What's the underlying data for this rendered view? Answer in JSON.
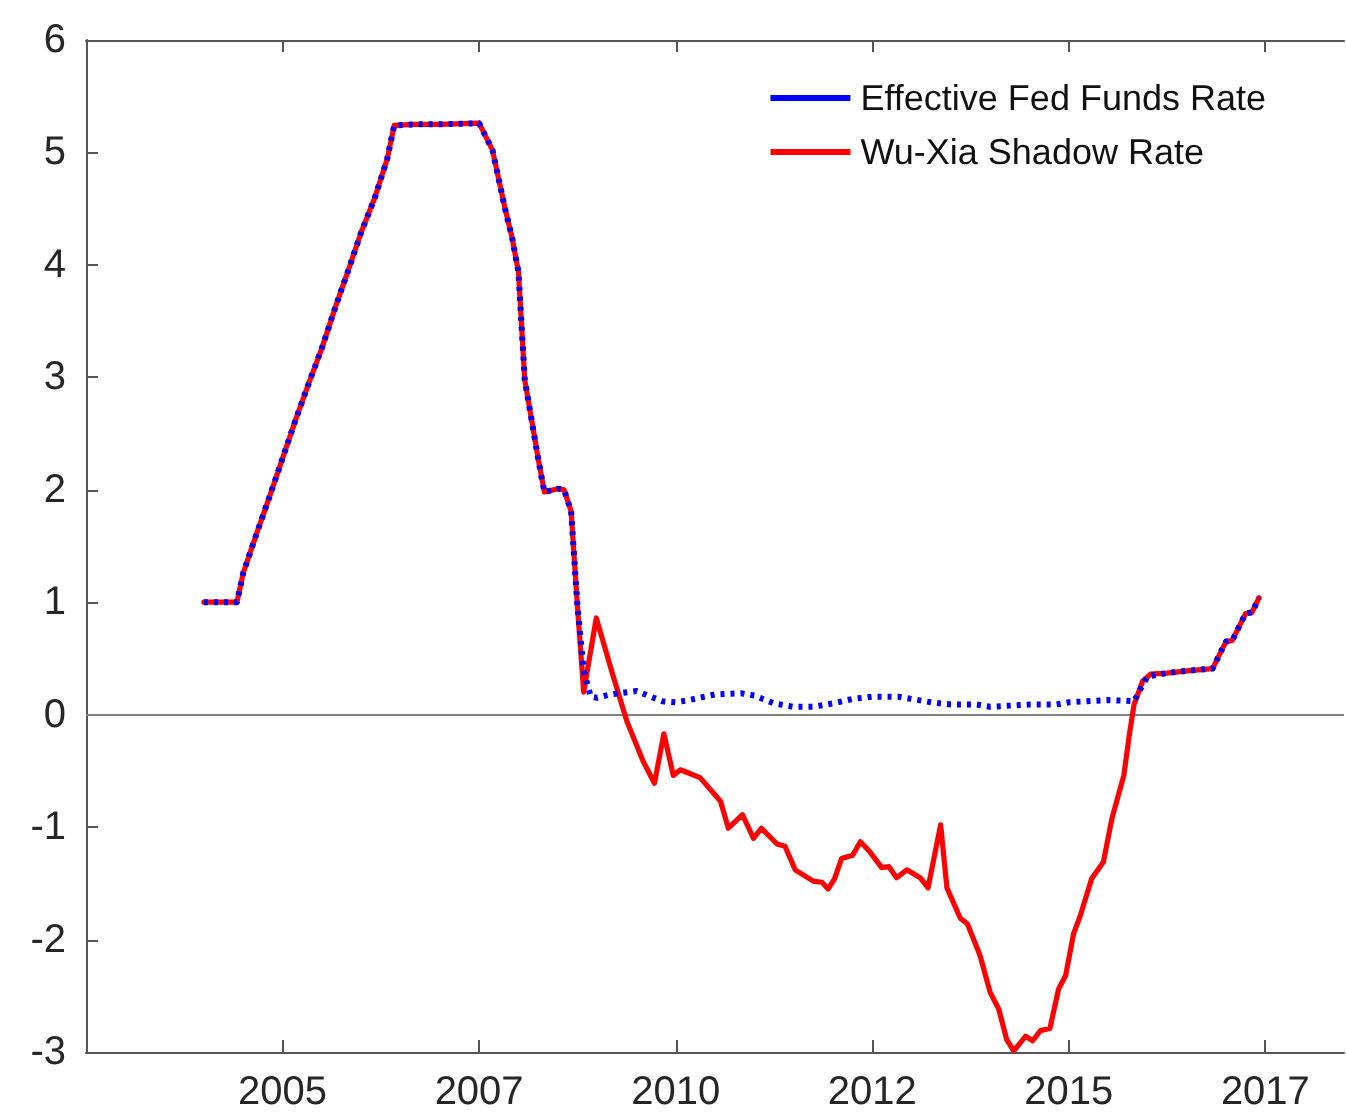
{
  "chart_data": {
    "type": "line",
    "xlim": [
      2002.5,
      2018.5
    ],
    "ylim": [
      -3,
      6
    ],
    "xticks": [
      {
        "value": 2005,
        "label": "2005"
      },
      {
        "value": 2007.5,
        "label": "2007"
      },
      {
        "value": 2010,
        "label": "2010"
      },
      {
        "value": 2012.5,
        "label": "2012"
      },
      {
        "value": 2015,
        "label": "2015"
      },
      {
        "value": 2017.5,
        "label": "2017"
      }
    ],
    "yticks": [
      -3,
      -2,
      -1,
      0,
      1,
      2,
      3,
      4,
      5,
      6
    ],
    "legend": "top right",
    "grid": false,
    "marker": "none",
    "ref_lines": [
      {
        "axis": "y",
        "value": 0,
        "color": "#808080"
      }
    ],
    "series": [
      {
        "name": "Effective Fed Funds Rate",
        "color": "#0000ff",
        "line_style": "dotted",
        "x": [
          2004.0,
          2004.42,
          2004.5,
          2004.67,
          2004.83,
          2005.0,
          2005.17,
          2005.33,
          2005.5,
          2005.67,
          2005.83,
          2006.0,
          2006.17,
          2006.33,
          2006.42,
          2006.67,
          2007.0,
          2007.5,
          2007.67,
          2007.83,
          2007.92,
          2008.0,
          2008.08,
          2008.17,
          2008.25,
          2008.33,
          2008.5,
          2008.58,
          2008.67,
          2008.75,
          2008.83,
          2008.92,
          2009.0,
          2009.17,
          2009.5,
          2009.83,
          2010.0,
          2010.17,
          2010.5,
          2010.83,
          2011.0,
          2011.25,
          2011.5,
          2011.75,
          2012.0,
          2012.25,
          2012.5,
          2012.83,
          2013.0,
          2013.25,
          2013.5,
          2013.83,
          2014.0,
          2014.5,
          2014.83,
          2015.0,
          2015.5,
          2015.83,
          2015.92,
          2016.0,
          2016.25,
          2016.5,
          2016.83,
          2016.92,
          2017.0,
          2017.08,
          2017.17,
          2017.25,
          2017.33,
          2017.42
        ],
        "values": [
          1.0,
          1.0,
          1.26,
          1.61,
          1.93,
          2.28,
          2.63,
          2.94,
          3.26,
          3.62,
          3.94,
          4.29,
          4.59,
          4.94,
          5.24,
          5.25,
          5.25,
          5.26,
          5.02,
          4.5,
          4.24,
          3.94,
          2.98,
          2.61,
          2.28,
          1.98,
          2.01,
          2.0,
          1.81,
          0.97,
          0.39,
          0.16,
          0.15,
          0.18,
          0.21,
          0.12,
          0.11,
          0.13,
          0.18,
          0.19,
          0.17,
          0.1,
          0.07,
          0.07,
          0.1,
          0.14,
          0.16,
          0.16,
          0.14,
          0.11,
          0.09,
          0.09,
          0.07,
          0.09,
          0.09,
          0.11,
          0.13,
          0.12,
          0.24,
          0.34,
          0.37,
          0.39,
          0.41,
          0.54,
          0.65,
          0.66,
          0.79,
          0.9,
          0.91,
          1.04
        ]
      },
      {
        "name": "Wu-Xia Shadow Rate",
        "color": "#ff0000",
        "line_style": "solid",
        "x": [
          2004.0,
          2004.42,
          2004.5,
          2004.67,
          2004.83,
          2005.0,
          2005.17,
          2005.33,
          2005.5,
          2005.67,
          2005.83,
          2006.0,
          2006.17,
          2006.33,
          2006.42,
          2006.67,
          2007.0,
          2007.5,
          2007.67,
          2007.83,
          2007.92,
          2008.0,
          2008.08,
          2008.17,
          2008.25,
          2008.33,
          2008.5,
          2008.58,
          2008.67,
          2008.75,
          2008.83,
          2008.99,
          2009.21,
          2009.38,
          2009.59,
          2009.73,
          2009.85,
          2009.97,
          2010.06,
          2010.31,
          2010.57,
          2010.67,
          2010.85,
          2010.99,
          2011.09,
          2011.29,
          2011.39,
          2011.52,
          2011.75,
          2011.86,
          2011.94,
          2012.02,
          2012.11,
          2012.25,
          2012.35,
          2012.47,
          2012.62,
          2012.71,
          2012.81,
          2012.94,
          2013.11,
          2013.21,
          2013.37,
          2013.45,
          2013.62,
          2013.71,
          2013.87,
          2014.0,
          2014.11,
          2014.21,
          2014.3,
          2014.45,
          2014.54,
          2014.64,
          2014.76,
          2014.87,
          2014.96,
          2015.06,
          2015.15,
          2015.29,
          2015.44,
          2015.55,
          2015.7,
          2015.77,
          2015.83,
          2015.94,
          2016.04,
          2016.25,
          2016.5,
          2016.83,
          2016.92,
          2017.0,
          2017.08,
          2017.17,
          2017.25,
          2017.33,
          2017.42
        ],
        "values": [
          1.0,
          1.0,
          1.26,
          1.61,
          1.93,
          2.28,
          2.63,
          2.94,
          3.26,
          3.62,
          3.94,
          4.29,
          4.59,
          4.94,
          5.24,
          5.25,
          5.25,
          5.26,
          5.02,
          4.5,
          4.24,
          3.94,
          2.98,
          2.61,
          2.28,
          1.98,
          2.01,
          2.0,
          1.81,
          0.97,
          0.2,
          0.86,
          0.33,
          -0.06,
          -0.42,
          -0.61,
          -0.17,
          -0.54,
          -0.49,
          -0.56,
          -0.77,
          -1.01,
          -0.89,
          -1.1,
          -1.01,
          -1.15,
          -1.17,
          -1.38,
          -1.48,
          -1.49,
          -1.55,
          -1.46,
          -1.28,
          -1.25,
          -1.13,
          -1.22,
          -1.36,
          -1.35,
          -1.45,
          -1.38,
          -1.45,
          -1.54,
          -0.98,
          -1.54,
          -1.81,
          -1.86,
          -2.14,
          -2.47,
          -2.62,
          -2.89,
          -2.99,
          -2.86,
          -2.9,
          -2.81,
          -2.79,
          -2.44,
          -2.32,
          -1.95,
          -1.78,
          -1.46,
          -1.31,
          -0.92,
          -0.54,
          -0.18,
          0.09,
          0.3,
          0.36,
          0.37,
          0.39,
          0.41,
          0.54,
          0.65,
          0.66,
          0.79,
          0.9,
          0.91,
          1.04
        ]
      }
    ]
  }
}
